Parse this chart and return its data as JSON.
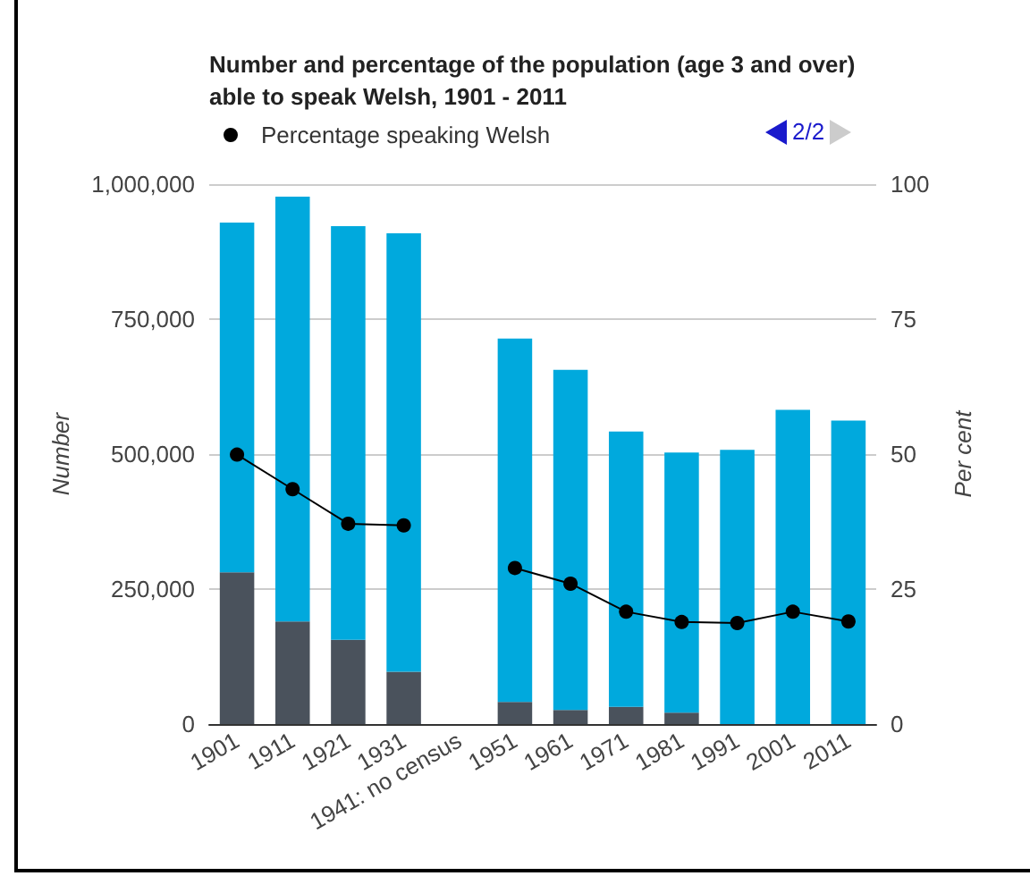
{
  "chart_data": {
    "type": "bar",
    "title": "Number and percentage of the population (age 3 and over) able to speak Welsh, 1901 - 2011",
    "categories": [
      "1901",
      "1911",
      "1921",
      "1931",
      "1941: no census",
      "1951",
      "1961",
      "1971",
      "1981",
      "1991",
      "2001",
      "2011"
    ],
    "stacked": true,
    "series": [
      {
        "color": "#4a525c",
        "values": [
          281000,
          190000,
          156000,
          97000,
          null,
          41000,
          26000,
          32000,
          21000,
          null,
          null,
          null
        ]
      },
      {
        "color": "#00a9dd",
        "values": [
          648000,
          787000,
          766000,
          812000,
          null,
          673000,
          630000,
          510000,
          482000,
          508000,
          582000,
          562000
        ]
      },
      {
        "name": "Percentage speaking Welsh",
        "type": "line",
        "axis": "y2",
        "color": "#000000",
        "values": [
          49.9,
          43.5,
          37.1,
          36.8,
          null,
          28.9,
          26.0,
          20.8,
          18.9,
          18.7,
          20.8,
          19.0
        ]
      }
    ],
    "ylabel": "Number",
    "y2label": "Per cent",
    "ylim": [
      0,
      1000000
    ],
    "yticks": [
      {
        "value": 0,
        "label": "0"
      },
      {
        "value": 250000,
        "label": "250,000"
      },
      {
        "value": 500000,
        "label": "500,000"
      },
      {
        "value": 750000,
        "label": "750,000"
      },
      {
        "value": 1000000,
        "label": "1,000,000"
      }
    ],
    "y2lim": [
      0,
      100
    ],
    "y2ticks": [
      0,
      25,
      50,
      75,
      100
    ],
    "grid": "y",
    "legend": "top left",
    "marker": "circle",
    "line_style": "solid",
    "annotations": [
      "2/2"
    ]
  }
}
